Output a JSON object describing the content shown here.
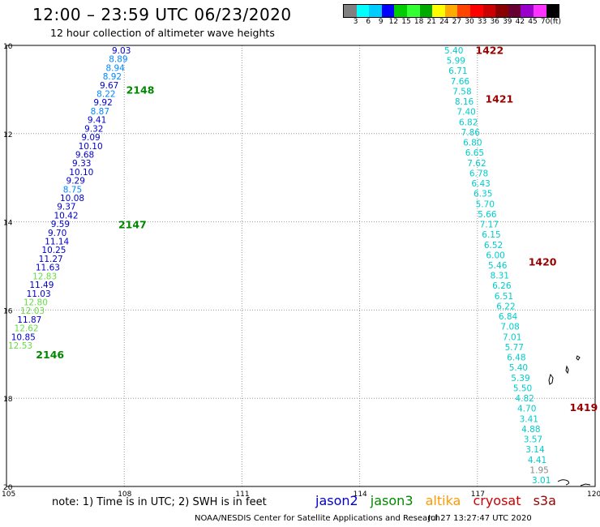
{
  "header": {
    "title": "12:00 – 23:59 UTC 06/23/2020",
    "subtitle": "12 hour collection of altimeter wave heights"
  },
  "colorbar": {
    "colors": [
      "#808080",
      "#00ffff",
      "#00ccff",
      "#0000ff",
      "#00cc00",
      "#33ff33",
      "#00aa00",
      "#ffff00",
      "#ffaa00",
      "#ff4400",
      "#ff0000",
      "#cc0000",
      "#880000",
      "#660033",
      "#9900cc",
      "#ff33ff",
      "#000000"
    ],
    "labels": [
      "3",
      "6",
      "9",
      "12",
      "15",
      "18",
      "21",
      "24",
      "27",
      "30",
      "33",
      "36",
      "39",
      "42",
      "45",
      "70",
      "(ft)"
    ]
  },
  "axes": {
    "lon_labels": [
      "105",
      "108",
      "111",
      "114",
      "117",
      "120"
    ],
    "lat_labels": [
      "10",
      "12",
      "14",
      "16",
      "18",
      "20"
    ]
  },
  "colors": {
    "jason2": "#0000cc",
    "jason3": "#008800",
    "altika": "#ff9900",
    "cryosat": "#cc0000",
    "s3a": "#990000",
    "cyan": "#00cccc",
    "blue": "#0000cc",
    "lightblue": "#0088ff",
    "green": "#66dd44",
    "gray": "#888888"
  },
  "passes": [
    {
      "id": "2148",
      "lon": 108.05,
      "lat": 11.0
    },
    {
      "id": "2147",
      "lon": 107.85,
      "lat": 14.05
    },
    {
      "id": "2146",
      "lon": 105.75,
      "lat": 17.0
    },
    {
      "id": "1422",
      "lon": 116.95,
      "lat": 10.1
    },
    {
      "id": "1421",
      "lon": 117.2,
      "lat": 11.2
    },
    {
      "id": "1420",
      "lon": 118.3,
      "lat": 14.9
    },
    {
      "id": "1419",
      "lon": 119.35,
      "lat": 18.2
    }
  ],
  "track_west": [
    {
      "v": "9.03",
      "c": "blue"
    },
    {
      "v": "8.89",
      "c": "lightblue"
    },
    {
      "v": "8.94",
      "c": "lightblue"
    },
    {
      "v": "8.92",
      "c": "lightblue"
    },
    {
      "v": "9.67",
      "c": "blue"
    },
    {
      "v": "8.22",
      "c": "lightblue"
    },
    {
      "v": "9.92",
      "c": "blue"
    },
    {
      "v": "8.87",
      "c": "lightblue"
    },
    {
      "v": "9.41",
      "c": "blue"
    },
    {
      "v": "9.32",
      "c": "blue"
    },
    {
      "v": "9.09",
      "c": "blue"
    },
    {
      "v": "10.10",
      "c": "blue"
    },
    {
      "v": "9.68",
      "c": "blue"
    },
    {
      "v": "9.33",
      "c": "blue"
    },
    {
      "v": "10.10",
      "c": "blue"
    },
    {
      "v": "9.29",
      "c": "blue"
    },
    {
      "v": "8.75",
      "c": "lightblue"
    },
    {
      "v": "10.08",
      "c": "blue"
    },
    {
      "v": "9.37",
      "c": "blue"
    },
    {
      "v": "10.42",
      "c": "blue"
    },
    {
      "v": "9.59",
      "c": "blue"
    },
    {
      "v": "9.70",
      "c": "blue"
    },
    {
      "v": "11.14",
      "c": "blue"
    },
    {
      "v": "10.25",
      "c": "blue"
    },
    {
      "v": "11.27",
      "c": "blue"
    },
    {
      "v": "11.63",
      "c": "blue"
    },
    {
      "v": "12.83",
      "c": "green"
    },
    {
      "v": "11.49",
      "c": "blue"
    },
    {
      "v": "11.03",
      "c": "blue"
    },
    {
      "v": "12.80",
      "c": "green"
    },
    {
      "v": "12.03",
      "c": "green"
    },
    {
      "v": "11.87",
      "c": "blue"
    },
    {
      "v": "12.62",
      "c": "green"
    },
    {
      "v": "10.85",
      "c": "blue"
    },
    {
      "v": "12.53",
      "c": "green"
    }
  ],
  "track_east": [
    {
      "v": "5.40",
      "c": "cyan"
    },
    {
      "v": "5.99",
      "c": "cyan"
    },
    {
      "v": "6.71",
      "c": "cyan"
    },
    {
      "v": "7.66",
      "c": "cyan"
    },
    {
      "v": "7.58",
      "c": "cyan"
    },
    {
      "v": "8.16",
      "c": "cyan"
    },
    {
      "v": "7.40",
      "c": "cyan"
    },
    {
      "v": "6.82",
      "c": "cyan"
    },
    {
      "v": "7.86",
      "c": "cyan"
    },
    {
      "v": "6.80",
      "c": "cyan"
    },
    {
      "v": "6.65",
      "c": "cyan"
    },
    {
      "v": "7.62",
      "c": "cyan"
    },
    {
      "v": "6.78",
      "c": "cyan"
    },
    {
      "v": "6.43",
      "c": "cyan"
    },
    {
      "v": "6.35",
      "c": "cyan"
    },
    {
      "v": "5.70",
      "c": "cyan"
    },
    {
      "v": "5.66",
      "c": "cyan"
    },
    {
      "v": "7.17",
      "c": "cyan"
    },
    {
      "v": "6.15",
      "c": "cyan"
    },
    {
      "v": "6.52",
      "c": "cyan"
    },
    {
      "v": "6.00",
      "c": "cyan"
    },
    {
      "v": "5.46",
      "c": "cyan"
    },
    {
      "v": "8.31",
      "c": "cyan"
    },
    {
      "v": "6.26",
      "c": "cyan"
    },
    {
      "v": "6.51",
      "c": "cyan"
    },
    {
      "v": "6.22",
      "c": "cyan"
    },
    {
      "v": "6.84",
      "c": "cyan"
    },
    {
      "v": "7.08",
      "c": "cyan"
    },
    {
      "v": "7.01",
      "c": "cyan"
    },
    {
      "v": "5.77",
      "c": "cyan"
    },
    {
      "v": "6.48",
      "c": "cyan"
    },
    {
      "v": "5.40",
      "c": "cyan"
    },
    {
      "v": "5.39",
      "c": "cyan"
    },
    {
      "v": "5.50",
      "c": "cyan"
    },
    {
      "v": "4.82",
      "c": "cyan"
    },
    {
      "v": "4.70",
      "c": "cyan"
    },
    {
      "v": "3.41",
      "c": "cyan"
    },
    {
      "v": "4.88",
      "c": "cyan"
    },
    {
      "v": "3.57",
      "c": "cyan"
    },
    {
      "v": "3.14",
      "c": "cyan"
    },
    {
      "v": "4.41",
      "c": "cyan"
    },
    {
      "v": "1.95",
      "c": "gray"
    },
    {
      "v": "3.01",
      "c": "cyan"
    }
  ],
  "footer": {
    "note": "note:  1) Time is in UTC;  2) SWH is in feet",
    "legend": [
      "jason2",
      "jason3",
      "altika",
      "cryosat",
      "s3a"
    ],
    "credit": "NOAA/NESDIS Center for Satellite Applications and Research",
    "timestamp": "Jul 27 13:27:47 UTC 2020"
  }
}
